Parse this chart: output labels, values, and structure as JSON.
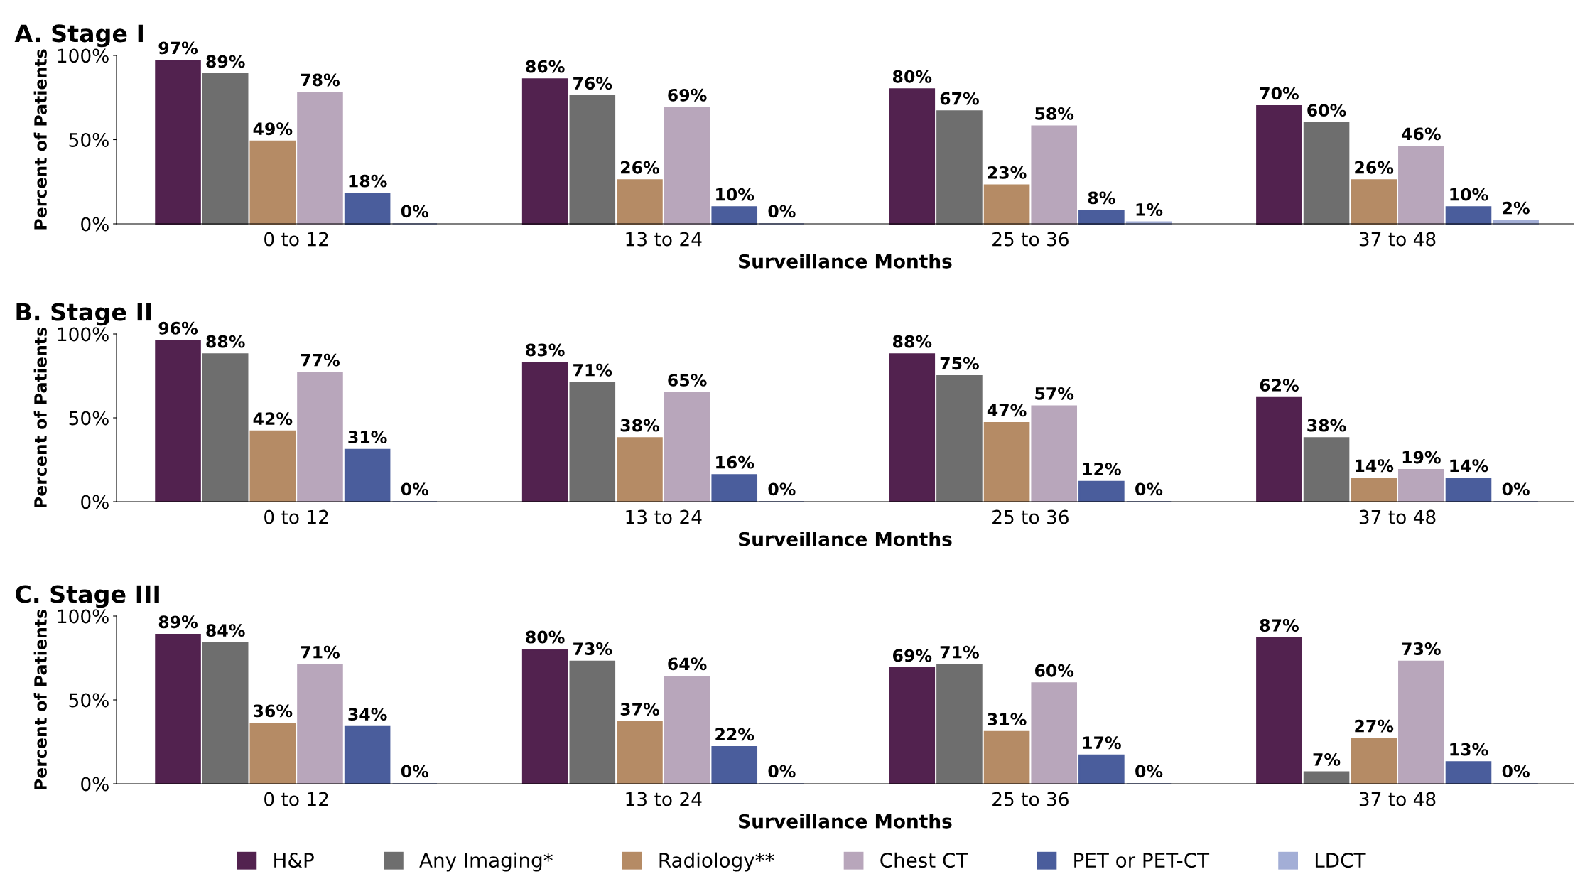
{
  "chart_data": [
    {
      "type": "bar",
      "title": "A. Stage I",
      "xlabel": "Surveillance Months",
      "ylabel": "Percent of Patients",
      "categories": [
        "0 to 12",
        "13 to 24",
        "25 to 36",
        "37 to 48"
      ],
      "ylim": [
        0,
        100
      ],
      "yticks": [
        {
          "value": 0,
          "label": "0%"
        },
        {
          "value": 50,
          "label": "50%"
        },
        {
          "value": 100,
          "label": "100%"
        }
      ],
      "grid": false,
      "legend": false,
      "series": [
        {
          "color": "#52224f",
          "values": [
            97,
            86,
            80,
            70
          ],
          "value_labels": [
            "97%",
            "86%",
            "80%",
            "70%"
          ]
        },
        {
          "color": "#6e6e6e",
          "values": [
            89,
            76,
            67,
            60
          ],
          "value_labels": [
            "89%",
            "76%",
            "67%",
            "60%"
          ]
        },
        {
          "color": "#b58b65",
          "values": [
            49,
            26,
            23,
            26
          ],
          "value_labels": [
            "49%",
            "26%",
            "23%",
            "26%"
          ]
        },
        {
          "color": "#b8a6bb",
          "values": [
            78,
            69,
            58,
            46
          ],
          "value_labels": [
            "78%",
            "69%",
            "58%",
            "46%"
          ]
        },
        {
          "color": "#4a5d9c",
          "values": [
            18,
            10,
            8,
            10
          ],
          "value_labels": [
            "18%",
            "10%",
            "8%",
            "10%"
          ]
        },
        {
          "color": "#a3aed6",
          "values": [
            0,
            0,
            1,
            2
          ],
          "value_labels": [
            "0%",
            "0%",
            "1%",
            "2%"
          ]
        }
      ]
    },
    {
      "type": "bar",
      "title": "B. Stage II",
      "xlabel": "Surveillance Months",
      "ylabel": "Percent of Patients",
      "categories": [
        "0 to 12",
        "13 to 24",
        "25 to 36",
        "37 to 48"
      ],
      "ylim": [
        0,
        100
      ],
      "yticks": [
        {
          "value": 0,
          "label": "0%"
        },
        {
          "value": 50,
          "label": "50%"
        },
        {
          "value": 100,
          "label": "100%"
        }
      ],
      "grid": false,
      "legend": false,
      "series": [
        {
          "color": "#52224f",
          "values": [
            96,
            83,
            88,
            62
          ],
          "value_labels": [
            "96%",
            "83%",
            "88%",
            "62%"
          ]
        },
        {
          "color": "#6e6e6e",
          "values": [
            88,
            71,
            75,
            38
          ],
          "value_labels": [
            "88%",
            "71%",
            "75%",
            "38%"
          ]
        },
        {
          "color": "#b58b65",
          "values": [
            42,
            38,
            47,
            14
          ],
          "value_labels": [
            "42%",
            "38%",
            "47%",
            "14%"
          ]
        },
        {
          "color": "#b8a6bb",
          "values": [
            77,
            65,
            57,
            19
          ],
          "value_labels": [
            "77%",
            "65%",
            "57%",
            "19%"
          ]
        },
        {
          "color": "#4a5d9c",
          "values": [
            31,
            16,
            12,
            14
          ],
          "value_labels": [
            "31%",
            "16%",
            "12%",
            "14%"
          ]
        },
        {
          "color": "#a3aed6",
          "values": [
            0,
            0,
            0,
            0
          ],
          "value_labels": [
            "0%",
            "0%",
            "0%",
            "0%"
          ]
        }
      ]
    },
    {
      "type": "bar",
      "title": "C. Stage III",
      "xlabel": "Surveillance Months",
      "ylabel": "Percent of Patients",
      "categories": [
        "0 to 12",
        "13 to 24",
        "25 to 36",
        "37 to 48"
      ],
      "ylim": [
        0,
        100
      ],
      "yticks": [
        {
          "value": 0,
          "label": "0%"
        },
        {
          "value": 50,
          "label": "50%"
        },
        {
          "value": 100,
          "label": "100%"
        }
      ],
      "grid": false,
      "legend": "bottom",
      "series": [
        {
          "name": "H&P",
          "color": "#52224f",
          "values": [
            89,
            80,
            69,
            87
          ],
          "value_labels": [
            "89%",
            "80%",
            "69%",
            "87%"
          ]
        },
        {
          "name": "Any Imaging*",
          "color": "#6e6e6e",
          "values": [
            84,
            73,
            71,
            7
          ],
          "value_labels": [
            "84%",
            "73%",
            "71%",
            "7%"
          ]
        },
        {
          "name": "Radiology**",
          "color": "#b58b65",
          "values": [
            36,
            37,
            31,
            27
          ],
          "value_labels": [
            "36%",
            "37%",
            "31%",
            "27%"
          ]
        },
        {
          "name": "Chest CT",
          "color": "#b8a6bb",
          "values": [
            71,
            64,
            60,
            73
          ],
          "value_labels": [
            "71%",
            "64%",
            "60%",
            "73%"
          ]
        },
        {
          "name": "PET or PET-CT",
          "color": "#4a5d9c",
          "values": [
            34,
            22,
            17,
            13
          ],
          "value_labels": [
            "34%",
            "22%",
            "17%",
            "13%"
          ]
        },
        {
          "name": "LDCT",
          "color": "#a3aed6",
          "values": [
            0,
            0,
            0,
            0
          ],
          "value_labels": [
            "0%",
            "0%",
            "0%",
            "0%"
          ]
        }
      ]
    }
  ]
}
